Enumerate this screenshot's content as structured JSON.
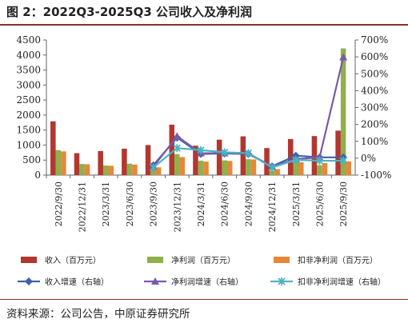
{
  "figure": {
    "title": "图 2：2022Q3-2025Q3  公司收入及净利润",
    "source": "资料来源：公司公告，中原证券研究所"
  },
  "chart_data": {
    "type": "bar",
    "categories": [
      "2022/9/30",
      "2022/12/31",
      "2023/3/31",
      "2023/6/30",
      "2023/9/30",
      "2023/12/31",
      "2024/3/31",
      "2024/6/30",
      "2024/9/30",
      "2024/12/31",
      "2025/3/31",
      "2025/6/30",
      "2025/9/30"
    ],
    "left_axis": {
      "ylim": [
        0,
        4500
      ],
      "ticks": [
        "0",
        "500",
        "1000",
        "1500",
        "2000",
        "2500",
        "3000",
        "3500",
        "4000",
        "4500"
      ]
    },
    "right_axis": {
      "ylim": [
        -100,
        700
      ],
      "ticks": [
        "-100%",
        "0%",
        "100%",
        "200%",
        "300%",
        "400%",
        "500%",
        "600%",
        "700%"
      ]
    },
    "grid": false,
    "legend_position": "bottom",
    "series": [
      {
        "name": "收入（百万元）",
        "kind": "bar",
        "axis": "left",
        "color": "#b3362f",
        "values": [
          1790,
          730,
          800,
          880,
          1000,
          1680,
          980,
          1180,
          1290,
          900,
          1200,
          1300,
          1480
        ]
      },
      {
        "name": "净利润（百万元）",
        "kind": "bar",
        "axis": "left",
        "color": "#8fb04a",
        "values": [
          830,
          370,
          320,
          380,
          320,
          700,
          480,
          490,
          530,
          150,
          460,
          330,
          4220
        ]
      },
      {
        "name": "扣非净利润（百万元）",
        "kind": "bar",
        "axis": "left",
        "color": "#e6883a",
        "values": [
          790,
          360,
          310,
          350,
          260,
          600,
          450,
          470,
          520,
          200,
          430,
          400,
          460
        ]
      },
      {
        "name": "收入增速（右轴）",
        "kind": "line",
        "axis": "right",
        "color": "#3a63a8",
        "marker": "diamond",
        "values": [
          null,
          null,
          null,
          null,
          -42,
          122,
          25,
          28,
          25,
          -48,
          15,
          5,
          5
        ]
      },
      {
        "name": "净利润增速（右轴）",
        "kind": "line",
        "axis": "right",
        "color": "#7b5aa6",
        "marker": "triangle",
        "values": [
          null,
          null,
          null,
          null,
          -52,
          130,
          30,
          30,
          30,
          -50,
          -5,
          5,
          598
        ]
      },
      {
        "name": "扣非净利润增速（右轴）",
        "kind": "line",
        "axis": "right",
        "color": "#4ab4c4",
        "marker": "x",
        "values": [
          null,
          null,
          null,
          null,
          -55,
          60,
          48,
          35,
          30,
          -55,
          -10,
          -15,
          -15
        ]
      }
    ]
  }
}
